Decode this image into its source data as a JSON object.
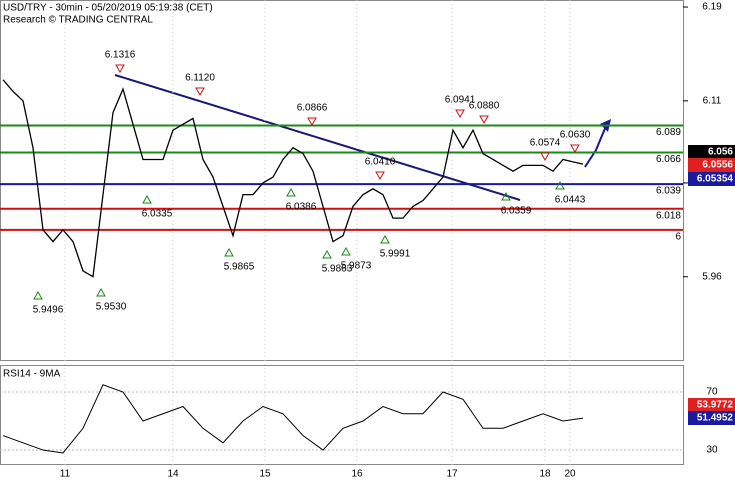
{
  "chart_data": {
    "type": "line",
    "title": "USD/TRY - 30min - 05/20/2019 05:19:38 (CET)",
    "subtitle": "Research © TRADING CENTRAL",
    "ylim": [
      5.889,
      6.196
    ],
    "yticks": [
      6.19,
      6.11,
      6.04,
      5.96
    ],
    "x_labels": [
      "11",
      "14",
      "15",
      "16",
      "17",
      "18",
      "20"
    ],
    "series": [
      {
        "name": "USD/TRY",
        "color": "#000000",
        "values": [
          6.128,
          6.118,
          6.11,
          6.07,
          6.0,
          5.99,
          6.0,
          5.99,
          5.965,
          5.96,
          6.03,
          6.1,
          6.12,
          6.09,
          6.06,
          6.06,
          6.06,
          6.085,
          6.09,
          6.095,
          6.06,
          6.045,
          6.02,
          5.995,
          6.03,
          6.03,
          6.04,
          6.045,
          6.06,
          6.07,
          6.065,
          6.05,
          6.02,
          5.99,
          5.995,
          6.02,
          6.03,
          6.035,
          6.03,
          6.01,
          6.01,
          6.02,
          6.025,
          6.035,
          6.045,
          6.085,
          6.07,
          6.085,
          6.065,
          6.06,
          6.055,
          6.05,
          6.055,
          6.055,
          6.055,
          6.05,
          6.06,
          6.058,
          6.056
        ]
      }
    ],
    "levels": [
      {
        "value": 6.089,
        "color": "#1a8a1a"
      },
      {
        "value": 6.066,
        "color": "#1a8a1a"
      },
      {
        "value": 6.039,
        "color": "#1a1aa0"
      },
      {
        "value": 6.018,
        "color": "#d01010"
      },
      {
        "value": 6,
        "color": "#d01010"
      }
    ],
    "peaks": [
      {
        "value": 6.1316,
        "label": "6.1316"
      },
      {
        "value": 6.112,
        "label": "6.1120"
      },
      {
        "value": 6.0866,
        "label": "6.0866"
      },
      {
        "value": 6.041,
        "label": "6.0410"
      },
      {
        "value": 6.0941,
        "label": "6.0941"
      },
      {
        "value": 6.088,
        "label": "6.0880"
      },
      {
        "value": 6.0574,
        "label": "6.0574"
      },
      {
        "value": 6.063,
        "label": "6.0630"
      }
    ],
    "troughs": [
      {
        "value": 5.9496,
        "label": "5.9496"
      },
      {
        "value": 5.953,
        "label": "5.9530"
      },
      {
        "value": 6.0335,
        "label": "6.0335"
      },
      {
        "value": 5.9865,
        "label": "5.9865"
      },
      {
        "value": 6.0386,
        "label": "6.0386"
      },
      {
        "value": 5.9863,
        "label": "5.9863"
      },
      {
        "value": 5.9873,
        "label": "5.9873"
      },
      {
        "value": 5.9991,
        "label": "5.9991"
      },
      {
        "value": 6.0359,
        "label": "6.0359"
      },
      {
        "value": 6.0443,
        "label": "6.0443"
      }
    ],
    "price_tags": [
      {
        "value": 6.056,
        "label": "6.056",
        "color": "#000000"
      },
      {
        "value": 6.0556,
        "label": "6.0556",
        "color": "#e02020"
      },
      {
        "value": 6.05354,
        "label": "6.05354",
        "color": "#1a1aa0"
      }
    ],
    "rsi": {
      "title": "RSI14 - 9MA",
      "ylim": [
        19.7,
        88.6
      ],
      "yticks": [
        70,
        30
      ],
      "color": "#000000",
      "values": [
        40,
        35,
        30,
        28,
        45,
        75,
        70,
        50,
        55,
        60,
        45,
        35,
        50,
        60,
        55,
        40,
        30,
        45,
        50,
        60,
        55,
        55,
        70,
        65,
        45,
        45,
        50,
        55,
        50,
        52
      ],
      "tags": [
        {
          "value": 53.9772,
          "label": "53.9772",
          "color": "#e02020"
        },
        {
          "value": 51.4952,
          "label": "51.4952",
          "color": "#1a1aa0"
        }
      ]
    }
  }
}
